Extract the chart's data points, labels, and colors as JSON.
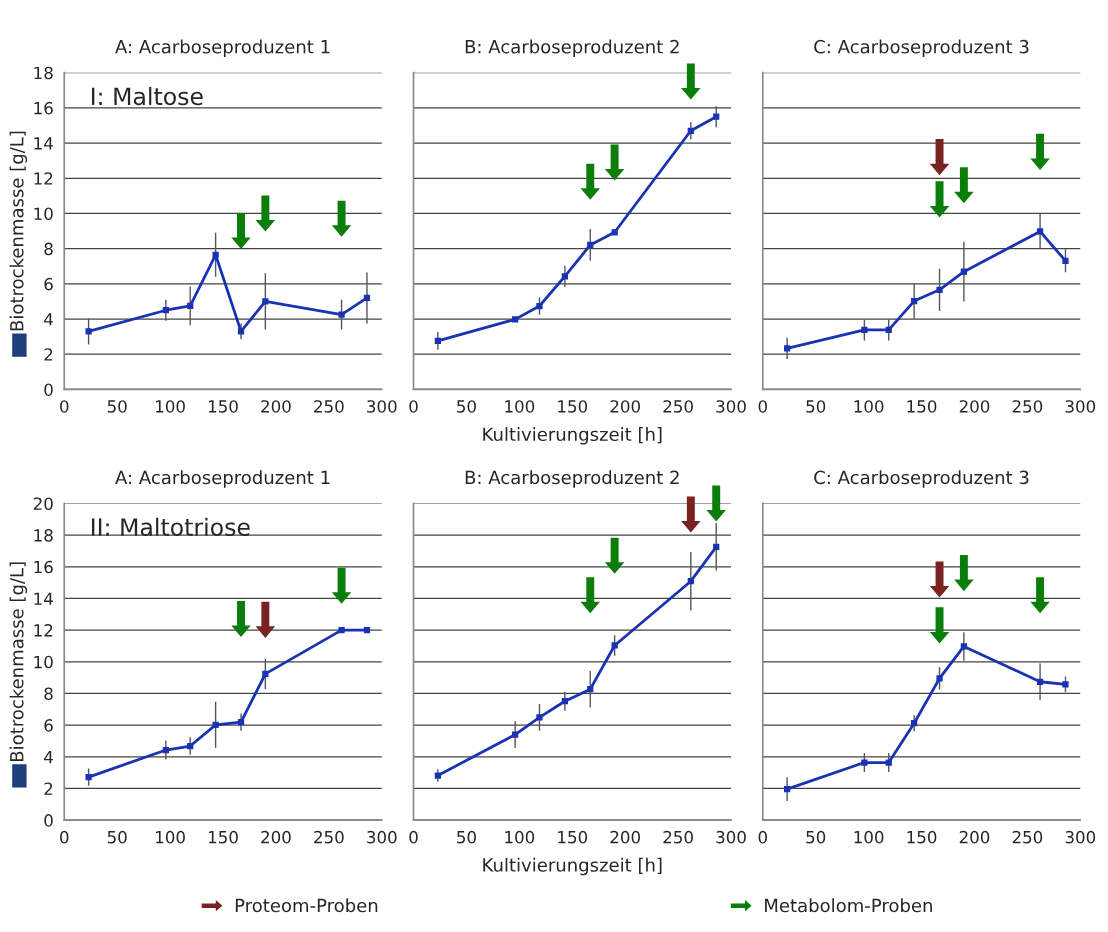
{
  "chart_data": [
    {
      "type": "line",
      "title": "A: Acarboseproduzent 1",
      "ylabel": "Biotrockenmasse [g/L]",
      "annotations": [
        "I: Maltose"
      ],
      "x": [
        23,
        96,
        119,
        143,
        167,
        190,
        262,
        286
      ],
      "xlim": [
        0,
        300
      ],
      "xticks": [
        0,
        50,
        100,
        150,
        200,
        250,
        300
      ],
      "ylim": [
        0,
        18
      ],
      "yticks": [
        0,
        2,
        4,
        6,
        8,
        10,
        12,
        14,
        16,
        18
      ],
      "grid": "y",
      "series": [
        {
          "color": "#1a32b4",
          "marker": "square",
          "values": [
            3.3,
            4.5,
            4.75,
            7.65,
            3.3,
            5.0,
            4.25,
            5.2
          ],
          "errors": [
            0.75,
            0.6,
            1.1,
            1.25,
            0.45,
            1.6,
            0.85,
            1.45
          ]
        },
        {
          "type": "scatter",
          "color": "#0a7d0a",
          "x": [
            167,
            190,
            262
          ],
          "values": [
            9.0,
            10.0,
            9.7
          ]
        }
      ]
    },
    {
      "type": "line",
      "title": "B: Acarboseproduzent 2",
      "xlabel": "Kultivierungszeit [h]",
      "x": [
        23,
        96,
        119,
        143,
        167,
        190,
        262,
        286
      ],
      "xlim": [
        0,
        300
      ],
      "xticks": [
        0,
        50,
        100,
        150,
        200,
        250,
        300
      ],
      "ylim": [
        0,
        18
      ],
      "yticks": [
        0,
        2,
        4,
        6,
        8,
        10,
        12,
        14,
        16,
        18
      ],
      "grid": "y",
      "tick_labels": "x",
      "series": [
        {
          "color": "#1a32b4",
          "marker": "square",
          "values": [
            2.76,
            3.98,
            4.74,
            6.43,
            8.21,
            8.93,
            14.7,
            15.5
          ],
          "errors": [
            0.5,
            null,
            0.5,
            0.6,
            0.9,
            null,
            0.5,
            0.6
          ]
        },
        {
          "type": "scatter",
          "color": "#0a7d0a",
          "x": [
            167,
            190,
            262
          ],
          "values": [
            11.8,
            12.9,
            17.5
          ]
        }
      ]
    },
    {
      "type": "line",
      "title": "C: Acarboseproduzent 3",
      "x": [
        23,
        96,
        119,
        143,
        167,
        190,
        262,
        286
      ],
      "xlim": [
        0,
        300
      ],
      "xticks": [
        0,
        50,
        100,
        150,
        200,
        250,
        300
      ],
      "ylim": [
        0,
        18
      ],
      "yticks": [
        0,
        2,
        4,
        6,
        8,
        10,
        12,
        14,
        16,
        18
      ],
      "grid": "y",
      "tick_labels": "x",
      "series": [
        {
          "color": "#1a32b4",
          "marker": "square",
          "values": [
            2.33,
            3.38,
            3.38,
            5.02,
            5.66,
            6.69,
            8.98,
            7.31
          ],
          "errors": [
            0.6,
            0.6,
            0.6,
            1.0,
            1.2,
            1.7,
            1.0,
            0.65
          ]
        },
        {
          "type": "scatter",
          "color": "#7a2222",
          "x": [
            167
          ],
          "values": [
            13.2
          ]
        },
        {
          "type": "scatter",
          "color": "#0a7d0a",
          "x": [
            167,
            190,
            262
          ],
          "values": [
            10.8,
            11.6,
            13.5
          ]
        }
      ]
    },
    {
      "type": "line",
      "title": "A: Acarboseproduzent 1",
      "ylabel": "Biotrockenmasse [g/L]",
      "annotations": [
        "II: Maltotriose"
      ],
      "x": [
        23,
        96,
        119,
        143,
        167,
        190,
        262,
        286
      ],
      "xlim": [
        0,
        300
      ],
      "xticks": [
        0,
        50,
        100,
        150,
        200,
        250,
        300
      ],
      "ylim": [
        0,
        20
      ],
      "yticks": [
        0,
        2,
        4,
        6,
        8,
        10,
        12,
        14,
        16,
        18,
        20
      ],
      "grid": "y",
      "series": [
        {
          "color": "#1a32b4",
          "marker": "square",
          "values": [
            2.72,
            4.43,
            4.68,
            6.02,
            6.19,
            9.24,
            12.0,
            12.0
          ],
          "errors": [
            0.55,
            0.6,
            0.55,
            1.45,
            0.55,
            0.95,
            null,
            null
          ]
        },
        {
          "type": "scatter",
          "color": "#7a2222",
          "x": [
            190
          ],
          "values": [
            12.65
          ]
        },
        {
          "type": "scatter",
          "color": "#0a7d0a",
          "x": [
            167,
            262
          ],
          "values": [
            12.7,
            14.8
          ]
        }
      ]
    },
    {
      "type": "line",
      "title": "B: Acarboseproduzent 2",
      "xlabel": "Kultivierungszeit [h]",
      "x": [
        23,
        96,
        119,
        143,
        167,
        190,
        262,
        286
      ],
      "xlim": [
        0,
        300
      ],
      "xticks": [
        0,
        50,
        100,
        150,
        200,
        250,
        300
      ],
      "ylim": [
        0,
        20
      ],
      "yticks": [
        0,
        2,
        4,
        6,
        8,
        10,
        12,
        14,
        16,
        18,
        20
      ],
      "grid": "y",
      "tick_labels": "x",
      "series": [
        {
          "color": "#1a32b4",
          "marker": "square",
          "values": [
            2.82,
            5.4,
            6.49,
            7.51,
            8.27,
            11.03,
            15.09,
            17.26
          ],
          "errors": [
            0.4,
            0.85,
            0.85,
            0.6,
            1.15,
            0.65,
            1.85,
            1.5
          ]
        },
        {
          "type": "scatter",
          "color": "#7a2222",
          "x": [
            262
          ],
          "values": [
            19.3
          ]
        },
        {
          "type": "scatter",
          "color": "#0a7d0a",
          "x": [
            167,
            190,
            286
          ],
          "values": [
            14.2,
            16.7,
            20.0
          ]
        }
      ]
    },
    {
      "type": "line",
      "title": "C: Acarboseproduzent 3",
      "x": [
        23,
        96,
        119,
        143,
        167,
        190,
        262,
        286
      ],
      "xlim": [
        0,
        300
      ],
      "xticks": [
        0,
        50,
        100,
        150,
        200,
        250,
        300
      ],
      "ylim": [
        0,
        20
      ],
      "yticks": [
        0,
        2,
        4,
        6,
        8,
        10,
        12,
        14,
        16,
        18,
        20
      ],
      "grid": "y",
      "tick_labels": "x",
      "legend": "bottom",
      "series": [
        {
          "color": "#1a32b4",
          "marker": "square",
          "values": [
            1.96,
            3.64,
            3.64,
            6.12,
            8.95,
            10.97,
            8.74,
            8.57
          ],
          "errors": [
            0.75,
            0.6,
            0.6,
            0.5,
            0.7,
            0.9,
            1.15,
            0.5
          ]
        },
        {
          "name": "Proteom-Proben",
          "type": "scatter",
          "color": "#7a2222",
          "x": [
            167
          ],
          "values": [
            15.2
          ]
        },
        {
          "name": "Metabolom-Proben",
          "type": "scatter",
          "color": "#0a7d0a",
          "x": [
            167,
            190,
            262
          ],
          "values": [
            12.3,
            15.6,
            14.2
          ]
        }
      ]
    }
  ]
}
